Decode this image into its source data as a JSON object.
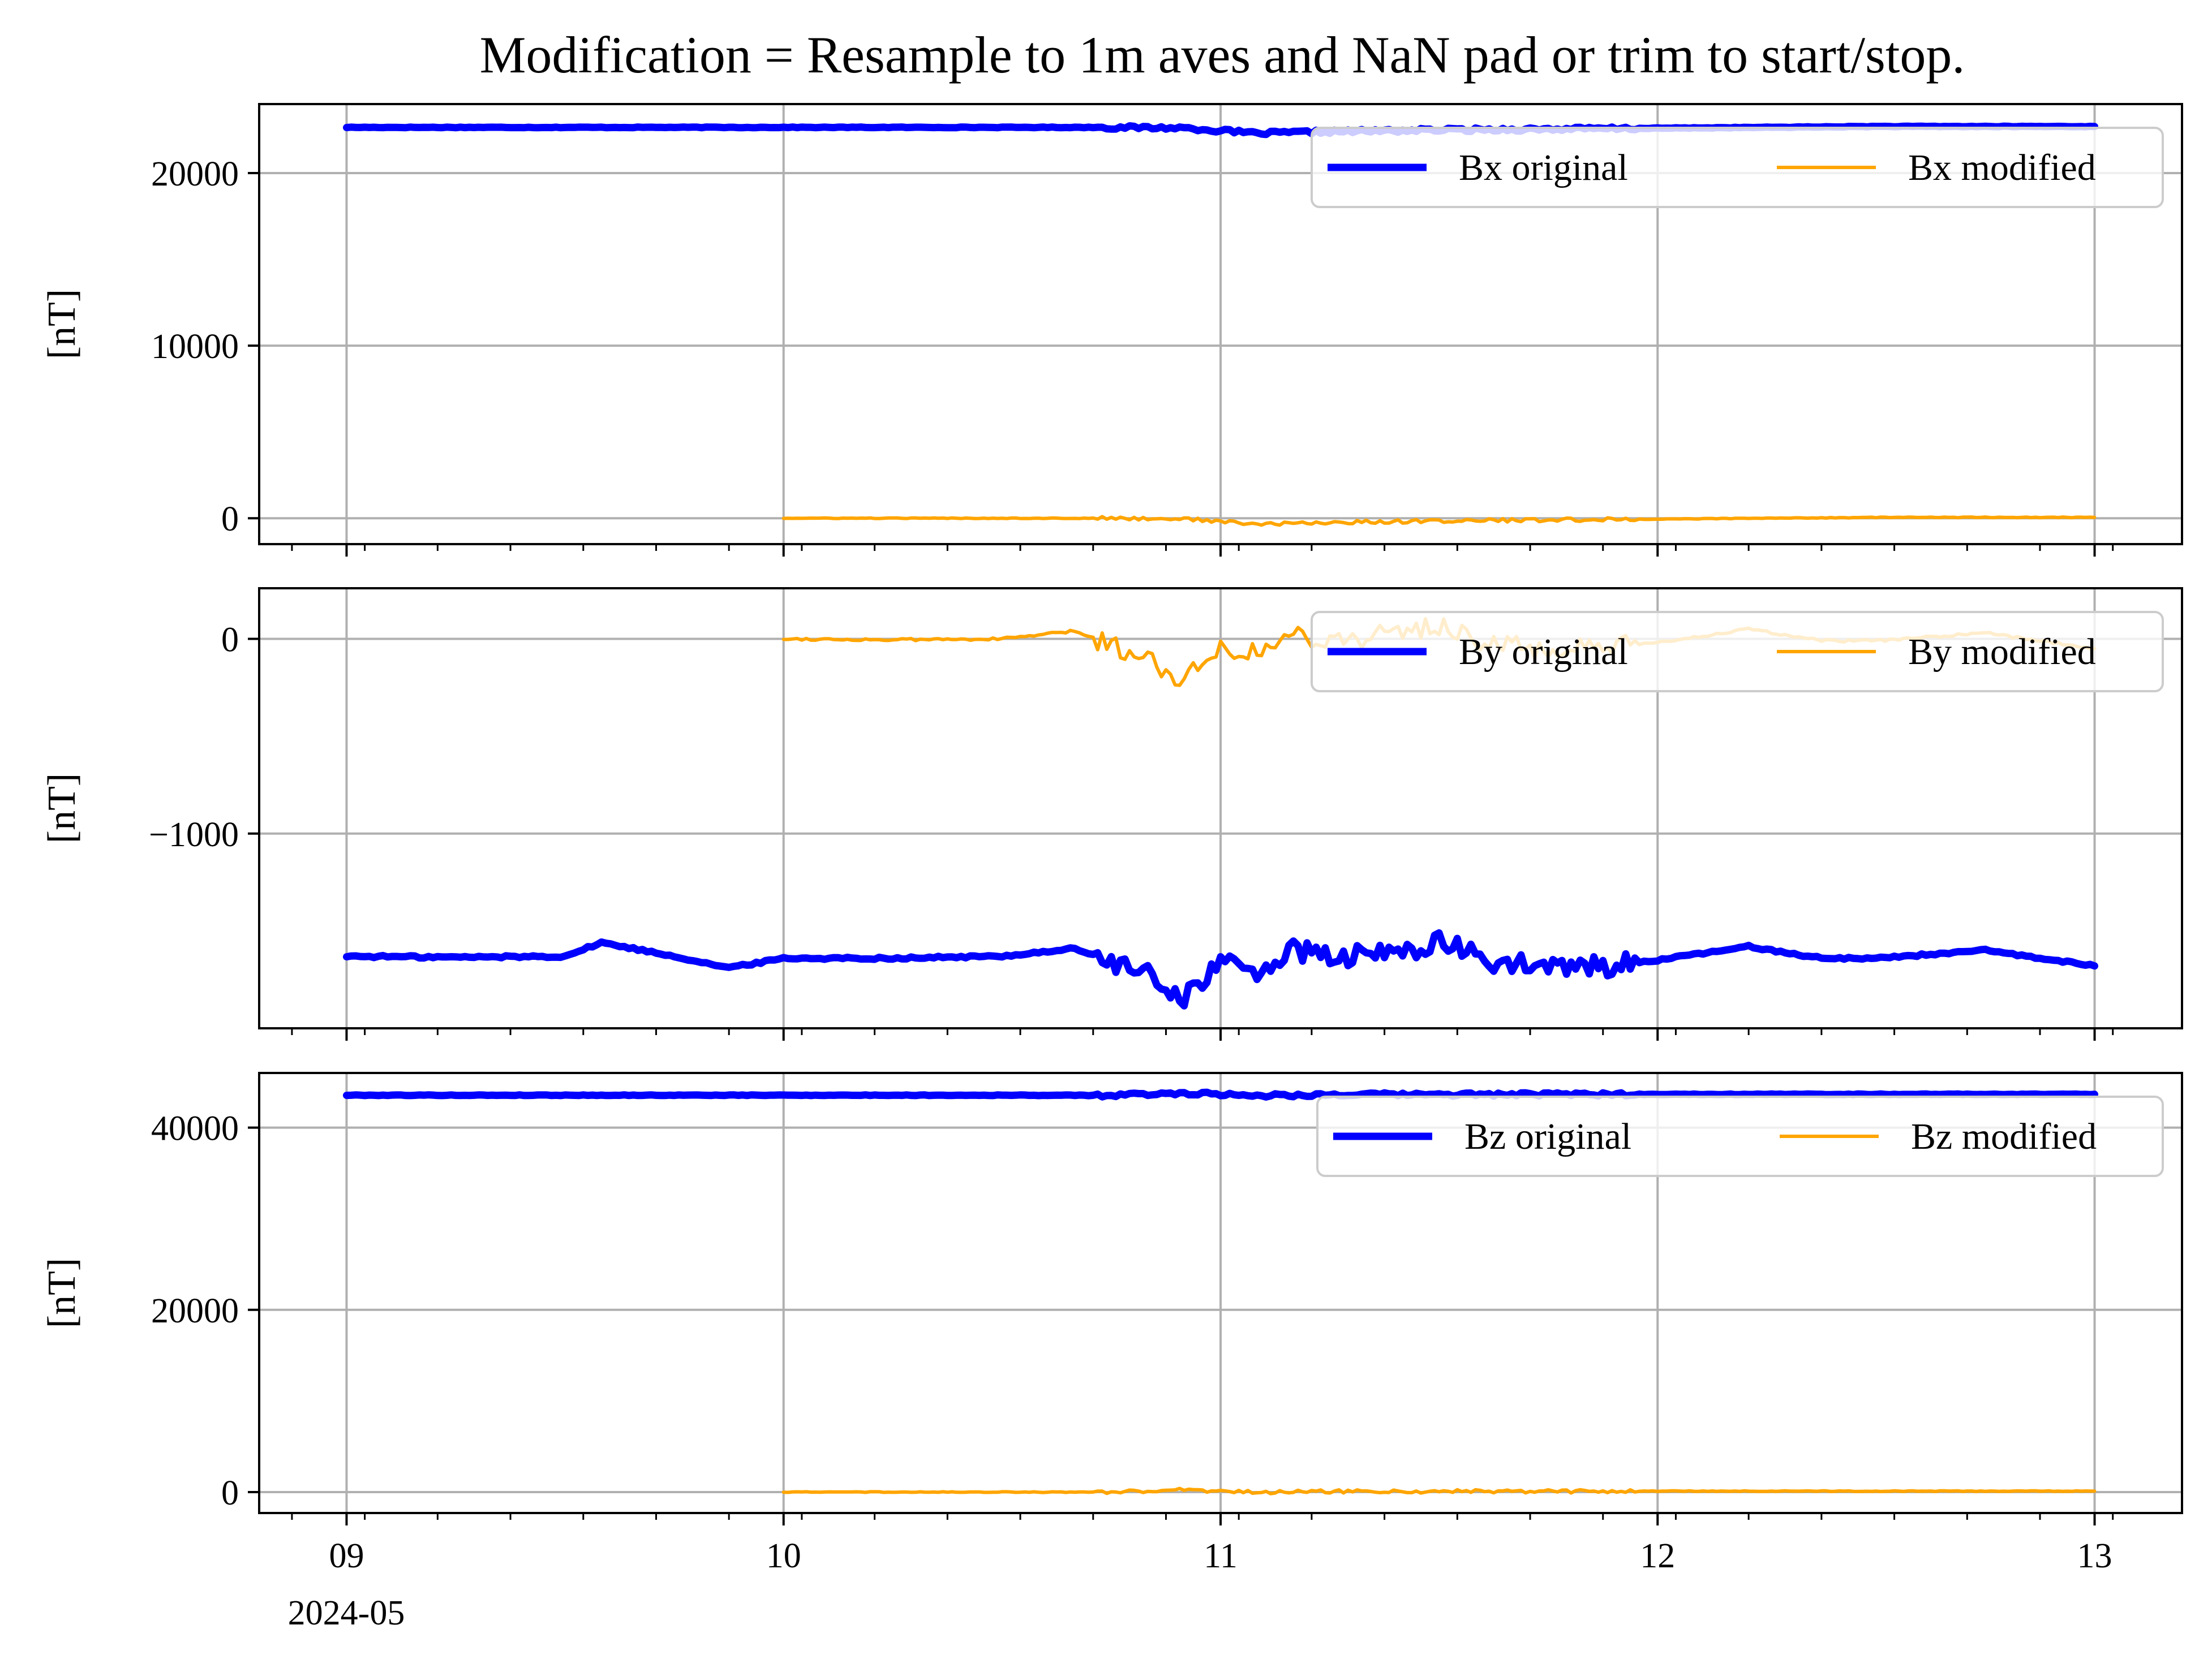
{
  "title": "Modification = Resample to 1m aves and NaN pad or trim to start/stop.",
  "x_tick_labels": [
    "09",
    "10",
    "11",
    "12",
    "13"
  ],
  "x_offset_label": "2024-05",
  "colors": {
    "original": "#0000ff",
    "modified": "#ffa500",
    "grid": "#b0b0b0"
  },
  "chart_data": [
    {
      "type": "line",
      "ylabel": "[nT]",
      "x_range": [
        "2024-05-08T19:12",
        "2024-05-13T04:48"
      ],
      "ylim": [
        -1500,
        24000
      ],
      "yticks": [
        0,
        10000,
        20000
      ],
      "ytick_labels": [
        "0",
        "10000",
        "20000"
      ],
      "grid": true,
      "legend_placement": "upper right",
      "series": [
        {
          "name": "Bx original",
          "color": "#0000ff",
          "x": [
            "2024-05-09T00:00",
            "2024-05-09T12:00",
            "2024-05-10T00:00",
            "2024-05-10T12:00",
            "2024-05-10T17:00",
            "2024-05-10T22:00",
            "2024-05-11T02:00",
            "2024-05-11T06:00",
            "2024-05-11T12:00",
            "2024-05-12T00:00",
            "2024-05-12T12:00",
            "2024-05-13T00:00"
          ],
          "values": [
            22650,
            22650,
            22650,
            22650,
            22650,
            22620,
            22300,
            22400,
            22500,
            22600,
            22700,
            22700
          ]
        },
        {
          "name": "Bx modified",
          "color": "#ffa500",
          "x": [
            "2024-05-10T00:00",
            "2024-05-10T12:00",
            "2024-05-10T17:00",
            "2024-05-10T22:00",
            "2024-05-11T02:00",
            "2024-05-11T06:00",
            "2024-05-11T12:00",
            "2024-05-12T00:00",
            "2024-05-12T12:00",
            "2024-05-13T00:00"
          ],
          "values": [
            0,
            0,
            0,
            -30,
            -350,
            -250,
            -150,
            -50,
            50,
            50
          ]
        }
      ]
    },
    {
      "type": "line",
      "ylabel": "[nT]",
      "x_range": [
        "2024-05-08T19:12",
        "2024-05-13T04:48"
      ],
      "ylim": [
        -2000,
        260
      ],
      "yticks": [
        -1000,
        0
      ],
      "ytick_labels": [
        "−1000",
        "0"
      ],
      "grid": true,
      "legend_placement": "upper right",
      "series": [
        {
          "name": "By original",
          "color": "#0000ff",
          "x": [
            "2024-05-09T00:00",
            "2024-05-09T06:00",
            "2024-05-09T12:00",
            "2024-05-09T14:00",
            "2024-05-09T18:00",
            "2024-05-09T21:00",
            "2024-05-10T00:00",
            "2024-05-10T06:00",
            "2024-05-10T12:00",
            "2024-05-10T16:00",
            "2024-05-10T20:00",
            "2024-05-10T22:00",
            "2024-05-11T00:00",
            "2024-05-11T02:00",
            "2024-05-11T04:00",
            "2024-05-11T06:00",
            "2024-05-11T09:00",
            "2024-05-11T12:00",
            "2024-05-11T15:00",
            "2024-05-11T18:00",
            "2024-05-11T21:00",
            "2024-05-12T00:00",
            "2024-05-12T05:00",
            "2024-05-12T09:00",
            "2024-05-12T12:00",
            "2024-05-12T18:00",
            "2024-05-13T00:00"
          ],
          "values": [
            -1630,
            -1635,
            -1630,
            -1560,
            -1630,
            -1690,
            -1640,
            -1640,
            -1630,
            -1590,
            -1730,
            -1840,
            -1660,
            -1710,
            -1600,
            -1640,
            -1620,
            -1560,
            -1660,
            -1690,
            -1680,
            -1650,
            -1580,
            -1640,
            -1640,
            -1600,
            -1680
          ]
        },
        {
          "name": "By modified",
          "color": "#ffa500",
          "x": [
            "2024-05-10T00:00",
            "2024-05-10T06:00",
            "2024-05-10T12:00",
            "2024-05-10T16:00",
            "2024-05-10T20:00",
            "2024-05-10T22:00",
            "2024-05-11T00:00",
            "2024-05-11T02:00",
            "2024-05-11T04:00",
            "2024-05-11T06:00",
            "2024-05-11T09:00",
            "2024-05-11T12:00",
            "2024-05-11T15:00",
            "2024-05-11T18:00",
            "2024-05-11T21:00",
            "2024-05-12T00:00",
            "2024-05-12T05:00",
            "2024-05-12T09:00",
            "2024-05-12T12:00",
            "2024-05-12T18:00",
            "2024-05-13T00:00"
          ],
          "values": [
            0,
            -5,
            0,
            40,
            -100,
            -210,
            -30,
            -80,
            30,
            -10,
            20,
            70,
            -30,
            -60,
            -50,
            -20,
            50,
            -10,
            -10,
            30,
            -50
          ]
        }
      ]
    },
    {
      "type": "line",
      "ylabel": "[nT]",
      "x_range": [
        "2024-05-08T19:12",
        "2024-05-13T04:48"
      ],
      "ylim": [
        -2300,
        46000
      ],
      "yticks": [
        0,
        20000,
        40000
      ],
      "ytick_labels": [
        "0",
        "20000",
        "40000"
      ],
      "grid": true,
      "legend_placement": "upper right",
      "series": [
        {
          "name": "Bz original",
          "color": "#0000ff",
          "x": [
            "2024-05-09T00:00",
            "2024-05-09T12:00",
            "2024-05-10T00:00",
            "2024-05-10T12:00",
            "2024-05-10T18:00",
            "2024-05-10T22:00",
            "2024-05-11T02:00",
            "2024-05-11T06:00",
            "2024-05-11T12:00",
            "2024-05-12T00:00",
            "2024-05-12T12:00",
            "2024-05-13T00:00"
          ],
          "values": [
            43560,
            43560,
            43560,
            43560,
            43540,
            43800,
            43540,
            43620,
            43640,
            43660,
            43660,
            43660
          ]
        },
        {
          "name": "Bz modified",
          "color": "#ffa500",
          "x": [
            "2024-05-10T00:00",
            "2024-05-10T12:00",
            "2024-05-10T18:00",
            "2024-05-10T22:00",
            "2024-05-11T02:00",
            "2024-05-11T06:00",
            "2024-05-11T12:00",
            "2024-05-12T00:00",
            "2024-05-12T12:00",
            "2024-05-13T00:00"
          ],
          "values": [
            0,
            0,
            -20,
            240,
            -20,
            60,
            80,
            100,
            100,
            100
          ]
        }
      ]
    }
  ]
}
